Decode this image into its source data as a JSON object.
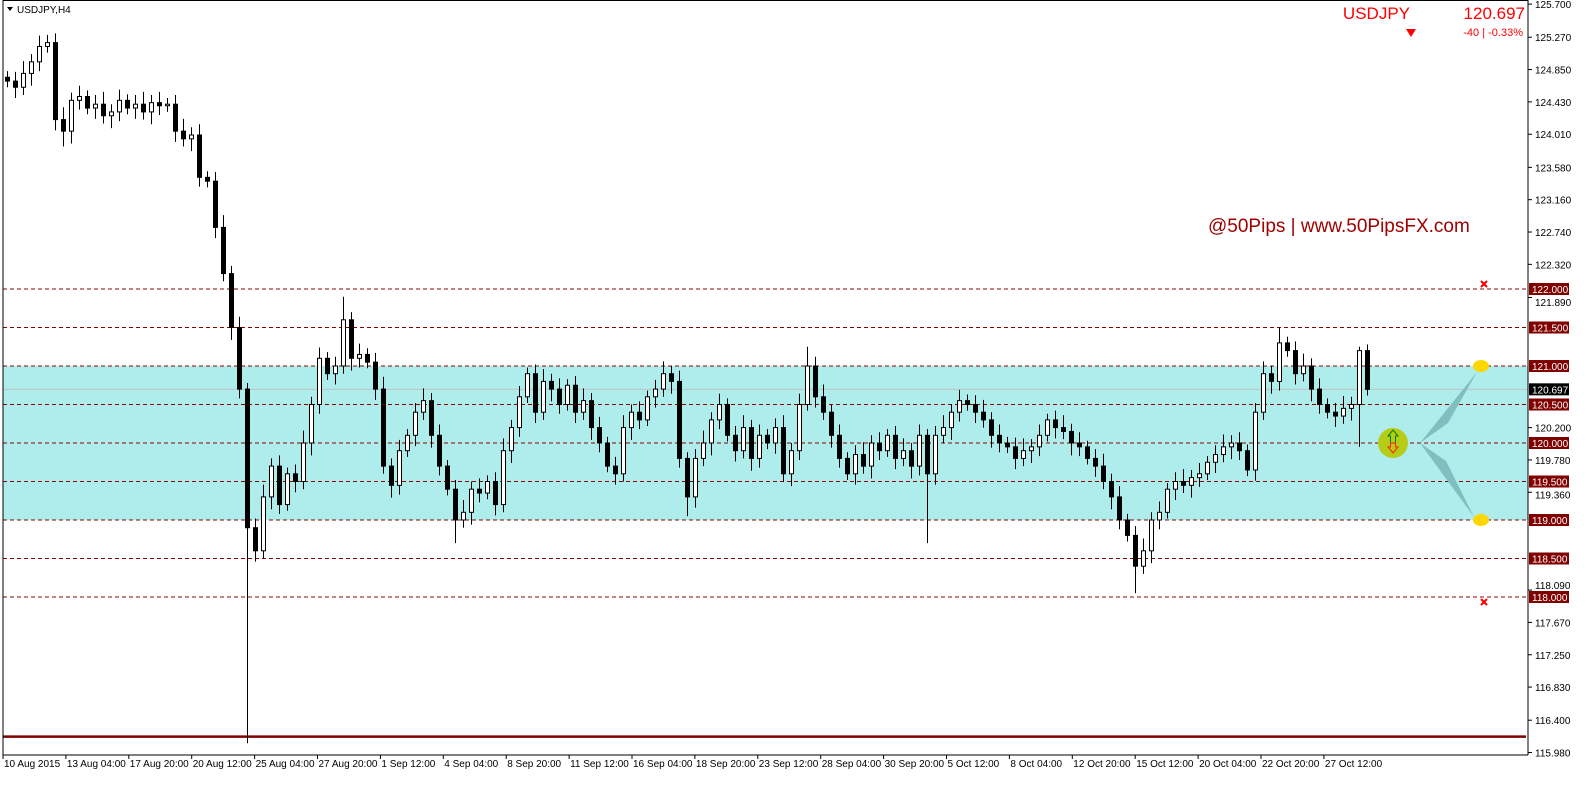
{
  "header": {
    "symbol_timeframe": "USDJPY,H4",
    "ticker_symbol": "USDJPY",
    "ticker_price": "120.697",
    "ticker_change": "-40 | -0.33%",
    "ticker_direction_icon": "triangle-down-icon"
  },
  "watermark": "@50Pips | www.50PipsFX.com",
  "colors": {
    "bull_body": "#ffffff",
    "bear_body": "#000000",
    "range_band": "#afeded",
    "level_line": "#8b0000",
    "level_label_bg": "#800000",
    "ticker_red": "#ff0000",
    "watermark": "#a00000",
    "marker_yellow": "#ffd700",
    "signal_circle": "#b5cc18",
    "projection_arrow": "#7fbfbf",
    "bottom_line": "#800000"
  },
  "chart_data": {
    "type": "candlestick",
    "symbol": "USDJPY",
    "timeframe": "H4",
    "ylim": [
      115.98,
      125.7
    ],
    "y_ticks": [
      "125.700",
      "125.270",
      "124.850",
      "124.430",
      "124.010",
      "123.580",
      "123.160",
      "122.740",
      "122.320",
      "121.890",
      "120.200",
      "119.780",
      "119.360",
      "118.090",
      "117.670",
      "117.250",
      "116.830",
      "116.400",
      "115.980"
    ],
    "x_ticks": [
      "10 Aug 2015",
      "13 Aug 04:00",
      "17 Aug 20:00",
      "20 Aug 12:00",
      "25 Aug 04:00",
      "27 Aug 20:00",
      "1 Sep 12:00",
      "4 Sep 04:00",
      "8 Sep 20:00",
      "11 Sep 12:00",
      "16 Sep 04:00",
      "18 Sep 20:00",
      "23 Sep 12:00",
      "28 Sep 04:00",
      "30 Sep 20:00",
      "5 Oct 12:00",
      "8 Oct 04:00",
      "12 Oct 20:00",
      "15 Oct 12:00",
      "20 Oct 04:00",
      "22 Oct 20:00",
      "27 Oct 12:00"
    ],
    "close": [
      124.7,
      124.62,
      124.8,
      124.95,
      125.15,
      125.2,
      124.2,
      124.05,
      124.45,
      124.5,
      124.35,
      124.4,
      124.25,
      124.3,
      124.45,
      124.35,
      124.4,
      124.3,
      124.42,
      124.38,
      124.4,
      124.05,
      123.95,
      124.0,
      123.45,
      123.4,
      122.8,
      122.2,
      121.5,
      120.7,
      118.9,
      118.6,
      119.3,
      119.7,
      119.2,
      119.6,
      119.5,
      120.0,
      120.5,
      121.1,
      120.9,
      121.0,
      121.6,
      121.1,
      121.15,
      121.05,
      120.7,
      119.7,
      119.45,
      119.9,
      120.1,
      120.4,
      120.55,
      120.1,
      119.7,
      119.4,
      119.0,
      119.1,
      119.4,
      119.35,
      119.5,
      119.2,
      119.9,
      120.2,
      120.6,
      120.9,
      120.4,
      120.8,
      120.7,
      120.5,
      120.75,
      120.4,
      120.55,
      120.2,
      120.0,
      119.7,
      119.6,
      120.2,
      120.4,
      120.3,
      120.6,
      120.7,
      120.9,
      120.8,
      119.8,
      119.3,
      119.8,
      120.0,
      120.3,
      120.5,
      120.1,
      119.9,
      120.2,
      119.8,
      120.1,
      120.0,
      120.2,
      119.6,
      119.9,
      120.5,
      121.0,
      120.6,
      120.4,
      120.1,
      119.8,
      119.6,
      119.85,
      119.7,
      120.0,
      119.9,
      120.1,
      119.8,
      119.9,
      119.7,
      120.1,
      119.6,
      120.1,
      120.2,
      120.4,
      120.55,
      120.5,
      120.4,
      120.3,
      120.1,
      120.0,
      119.95,
      119.8,
      119.9,
      119.95,
      120.1,
      120.3,
      120.2,
      120.15,
      120.0,
      119.95,
      119.8,
      119.7,
      119.5,
      119.3,
      119.0,
      118.8,
      118.4,
      118.6,
      119.0,
      119.1,
      119.4,
      119.5,
      119.45,
      119.55,
      119.6,
      119.75,
      119.85,
      119.95,
      120.0,
      119.9,
      119.65,
      120.4,
      120.9,
      120.8,
      121.3,
      121.2,
      120.9,
      121.0,
      120.7,
      120.5,
      120.4,
      120.35,
      120.45,
      120.5,
      121.2,
      120.697
    ],
    "wick_extremes": [
      {
        "index": 5,
        "high": 125.3
      },
      {
        "index": 7,
        "low": 123.85
      },
      {
        "index": 30,
        "low": 116.1
      },
      {
        "index": 42,
        "high": 121.9
      },
      {
        "index": 56,
        "low": 118.7
      },
      {
        "index": 85,
        "low": 119.05
      },
      {
        "index": 100,
        "high": 121.25
      },
      {
        "index": 115,
        "low": 118.7
      },
      {
        "index": 141,
        "low": 118.05
      },
      {
        "index": 159,
        "high": 121.5
      },
      {
        "index": 169,
        "high": 121.25,
        "low": 119.95
      }
    ],
    "levels": [
      {
        "price": 122.0,
        "label": "122.000"
      },
      {
        "price": 121.5,
        "label": "121.500"
      },
      {
        "price": 121.0,
        "label": "121.000"
      },
      {
        "price": 120.5,
        "label": "120.500"
      },
      {
        "price": 120.0,
        "label": "120.000"
      },
      {
        "price": 119.5,
        "label": "119.500"
      },
      {
        "price": 119.0,
        "label": "119.000"
      },
      {
        "price": 118.5,
        "label": "118.500"
      },
      {
        "price": 118.0,
        "label": "118.000"
      }
    ],
    "current_price": {
      "price": 120.697,
      "label": "120.697"
    },
    "range_band": [
      119.0,
      121.0
    ],
    "bottom_line_price": 116.19,
    "target_markers": [
      122.0,
      118.0
    ],
    "projection_endpoints": [
      121.0,
      119.0
    ],
    "signal_price": 120.0
  }
}
